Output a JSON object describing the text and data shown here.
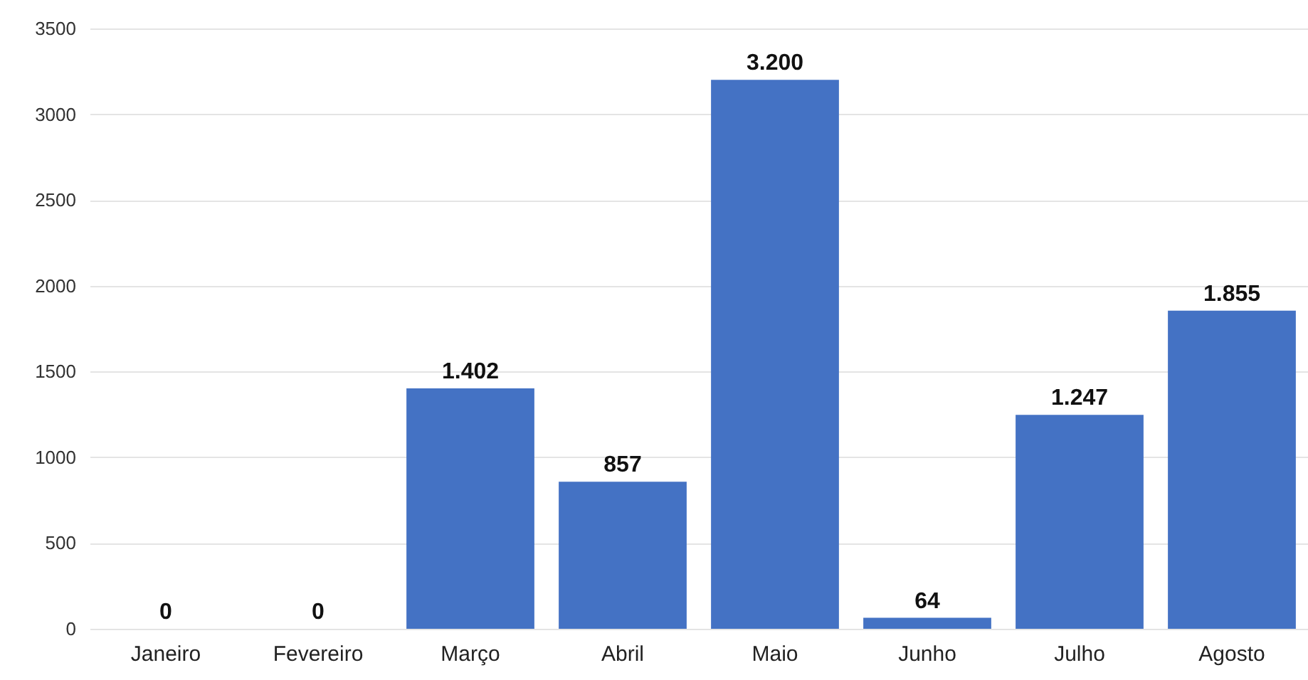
{
  "chart_data": {
    "type": "bar",
    "categories": [
      "Janeiro",
      "Fevereiro",
      "Março",
      "Abril",
      "Maio",
      "Junho",
      "Julho",
      "Agosto"
    ],
    "values": [
      0,
      0,
      1402,
      857,
      3200,
      64,
      1247,
      1855
    ],
    "value_labels": [
      "0",
      "0",
      "1.402",
      "857",
      "3.200",
      "64",
      "1.247",
      "1.855"
    ],
    "color": "#4472c4",
    "ylim": [
      0,
      3500
    ],
    "yticks": [
      0,
      500,
      1000,
      1500,
      2000,
      2500,
      3000,
      3500
    ],
    "grid": "y"
  }
}
